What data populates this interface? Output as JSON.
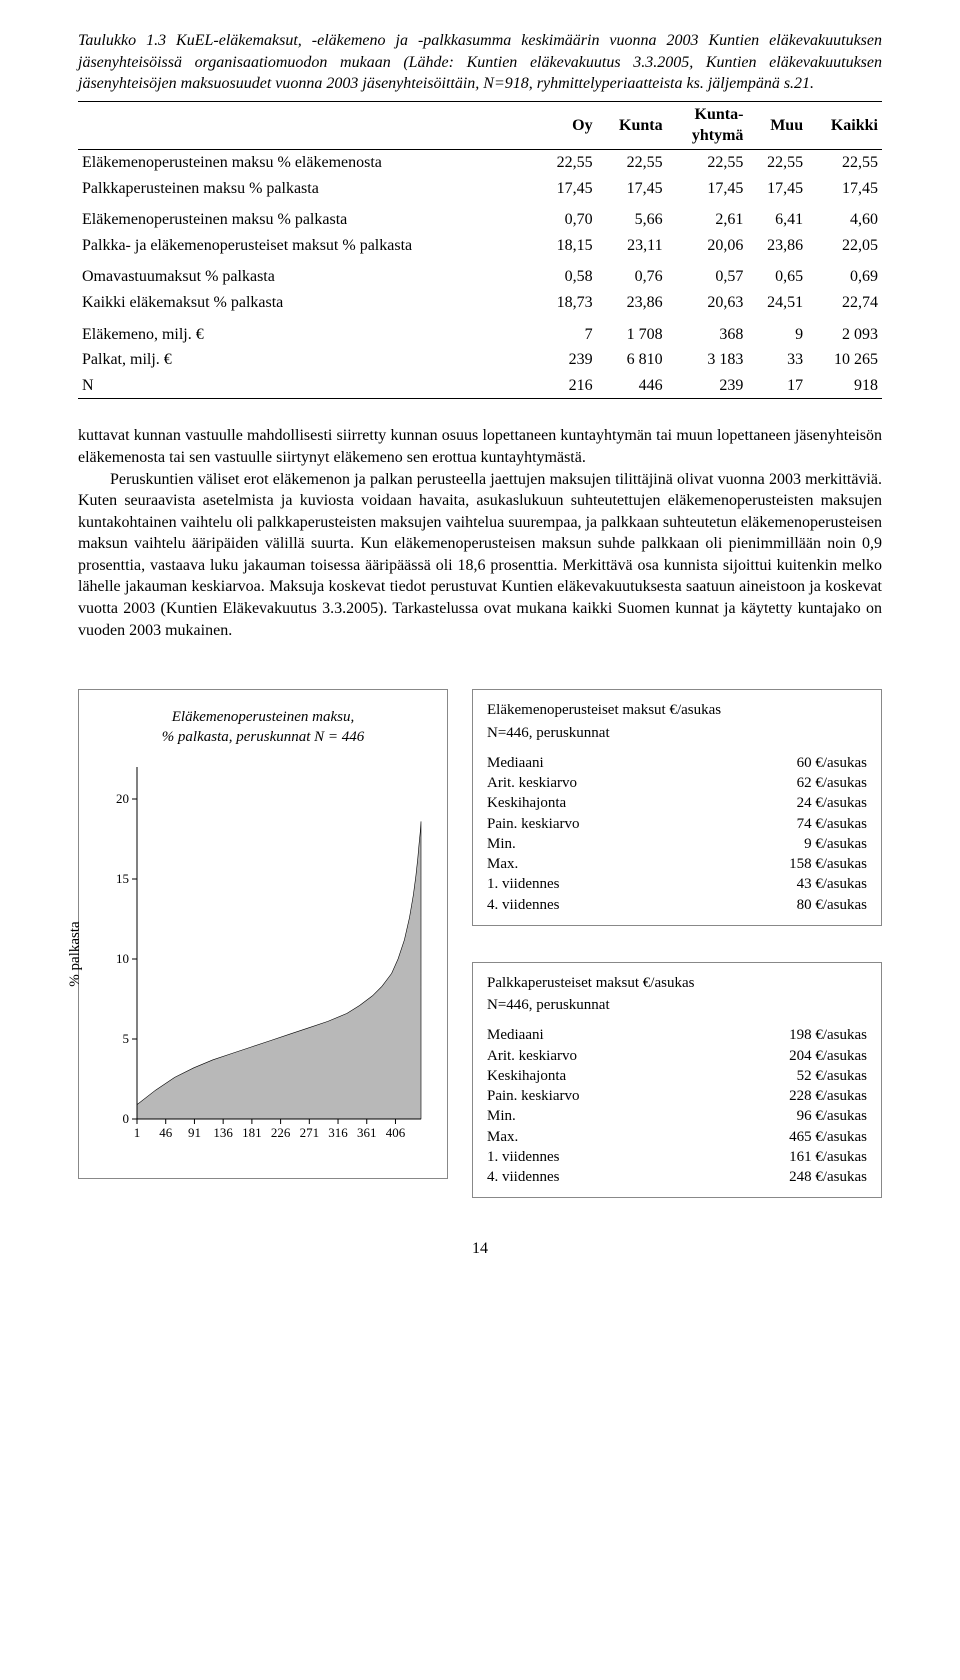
{
  "caption": "Taulukko 1.3 KuEL-eläkemaksut, -eläkemeno ja -palkkasumma keskimäärin vuonna 2003 Kuntien eläkevakuutuksen jäsenyhteisöissä organisaatiomuodon mukaan (Lähde: Kuntien eläkevakuutus 3.3.2005, Kuntien eläkevakuutuksen jäsenyhteisöjen maksuosuudet vuonna 2003 jäsenyhteisöittäin, N=918, ryhmittelyperiaatteista ks. jäljempänä s.21.",
  "table": {
    "columns": [
      "",
      "Oy",
      "Kunta",
      "Kunta-\nyhtymä",
      "Muu",
      "Kaikki"
    ],
    "rows": [
      {
        "label": "Eläkemenoperusteinen maksu % eläkemenosta",
        "vals": [
          "22,55",
          "22,55",
          "22,55",
          "22,55",
          "22,55"
        ]
      },
      {
        "label": "Palkkaperusteinen maksu % palkasta",
        "vals": [
          "17,45",
          "17,45",
          "17,45",
          "17,45",
          "17,45"
        ]
      },
      {
        "label": "Eläkemenoperusteinen maksu % palkasta",
        "vals": [
          "0,70",
          "5,66",
          "2,61",
          "6,41",
          "4,60"
        ],
        "section": true
      },
      {
        "label": "Palkka- ja eläkemenoperusteiset maksut % palkasta",
        "vals": [
          "18,15",
          "23,11",
          "20,06",
          "23,86",
          "22,05"
        ]
      },
      {
        "label": "Omavastuumaksut % palkasta",
        "vals": [
          "0,58",
          "0,76",
          "0,57",
          "0,65",
          "0,69"
        ],
        "section": true
      },
      {
        "label": "Kaikki eläkemaksut % palkasta",
        "vals": [
          "18,73",
          "23,86",
          "20,63",
          "24,51",
          "22,74"
        ]
      },
      {
        "label": "Eläkemeno, milj. €",
        "vals": [
          "7",
          "1 708",
          "368",
          "9",
          "2 093"
        ],
        "section": true
      },
      {
        "label": "Palkat, milj. €",
        "vals": [
          "239",
          "6 810",
          "3 183",
          "33",
          "10 265"
        ]
      },
      {
        "label": "N",
        "vals": [
          "216",
          "446",
          "239",
          "17",
          "918"
        ]
      }
    ]
  },
  "paragraphs": [
    "kuttavat kunnan vastuulle mahdollisesti siirretty kunnan osuus lopettaneen kuntayhtymän tai muun lopettaneen jäsenyhteisön eläkemenosta tai sen vastuulle siirtynyt eläkemeno sen erottua kuntayhtymästä.",
    "Peruskuntien väliset erot eläkemenon ja palkan perusteella jaettujen maksujen tilittäjinä olivat vuonna 2003 merkittäviä. Kuten seuraavista asetelmista ja kuviosta voidaan havaita, asukaslukuun suhteutettujen eläkemenoperusteisten maksujen kuntakohtainen vaihtelu oli palkkaperusteisten maksujen vaihtelua suurempaa, ja palkkaan suhteutetun eläkemenoperusteisen maksun vaihtelu ääripäiden välillä suurta. Kun eläkemenoperusteisen maksun suhde palkkaan oli pienimmillään noin 0,9 prosenttia, vastaava luku jakauman toisessa ääripäässä oli 18,6 prosenttia. Merkittävä osa kunnista sijoittui kuitenkin melko lähelle jakauman keskiarvoa. Maksuja koskevat tiedot perustuvat Kuntien eläkevakuutuksesta saatuun aineistoon ja koskevat vuotta 2003 (Kuntien Eläkevakuutus 3.3.2005). Tarkastelussa ovat mukana kaikki Suomen kunnat ja käytetty kuntajako on vuoden 2003 mukainen."
  ],
  "chart": {
    "title_line1": "Eläkemenoperusteinen maksu,",
    "title_line2": "% palkasta, peruskunnat N = 446",
    "y_label": "% palkasta",
    "y_ticks": [
      0,
      5,
      10,
      15,
      20
    ],
    "x_ticks": [
      1,
      46,
      91,
      136,
      181,
      226,
      271,
      316,
      361,
      406
    ],
    "ylim": [
      0,
      22
    ],
    "xlim": [
      1,
      446
    ],
    "fill_color": "#b8b8b8",
    "stroke_color": "#000000",
    "background": "#ffffff",
    "curve": [
      [
        1,
        0.9
      ],
      [
        30,
        1.8
      ],
      [
        60,
        2.6
      ],
      [
        90,
        3.2
      ],
      [
        120,
        3.7
      ],
      [
        150,
        4.1
      ],
      [
        180,
        4.5
      ],
      [
        210,
        4.9
      ],
      [
        240,
        5.3
      ],
      [
        270,
        5.7
      ],
      [
        300,
        6.1
      ],
      [
        330,
        6.6
      ],
      [
        350,
        7.1
      ],
      [
        370,
        7.7
      ],
      [
        385,
        8.3
      ],
      [
        400,
        9.1
      ],
      [
        410,
        10.0
      ],
      [
        420,
        11.2
      ],
      [
        428,
        12.6
      ],
      [
        434,
        14.0
      ],
      [
        438,
        15.2
      ],
      [
        441,
        16.3
      ],
      [
        443,
        17.2
      ],
      [
        445,
        18.0
      ],
      [
        446,
        18.6
      ]
    ]
  },
  "stats_boxes": [
    {
      "title": "Eläkemenoperusteiset maksut €/asukas",
      "sub": "N=446, peruskunnat",
      "rows": [
        [
          "Mediaani",
          "60 €/asukas"
        ],
        [
          "Arit. keskiarvo",
          "62 €/asukas"
        ],
        [
          "Keskihajonta",
          "24 €/asukas"
        ],
        [
          "Pain. keskiarvo",
          "74 €/asukas"
        ],
        [
          "Min.",
          "9 €/asukas"
        ],
        [
          "Max.",
          "158 €/asukas"
        ],
        [
          "1. viidennes",
          "43 €/asukas"
        ],
        [
          "4. viidennes",
          "80 €/asukas"
        ]
      ]
    },
    {
      "title": "Palkkaperusteiset maksut €/asukas",
      "sub": "N=446, peruskunnat",
      "rows": [
        [
          "Mediaani",
          "198 €/asukas"
        ],
        [
          "Arit. keskiarvo",
          "204 €/asukas"
        ],
        [
          "Keskihajonta",
          "52 €/asukas"
        ],
        [
          "Pain. keskiarvo",
          "228 €/asukas"
        ],
        [
          "Min.",
          "96 €/asukas"
        ],
        [
          "Max.",
          "465 €/asukas"
        ],
        [
          "1. viidennes",
          "161 €/asukas"
        ],
        [
          "4. viidennes",
          "248 €/asukas"
        ]
      ]
    }
  ],
  "page_number": "14"
}
